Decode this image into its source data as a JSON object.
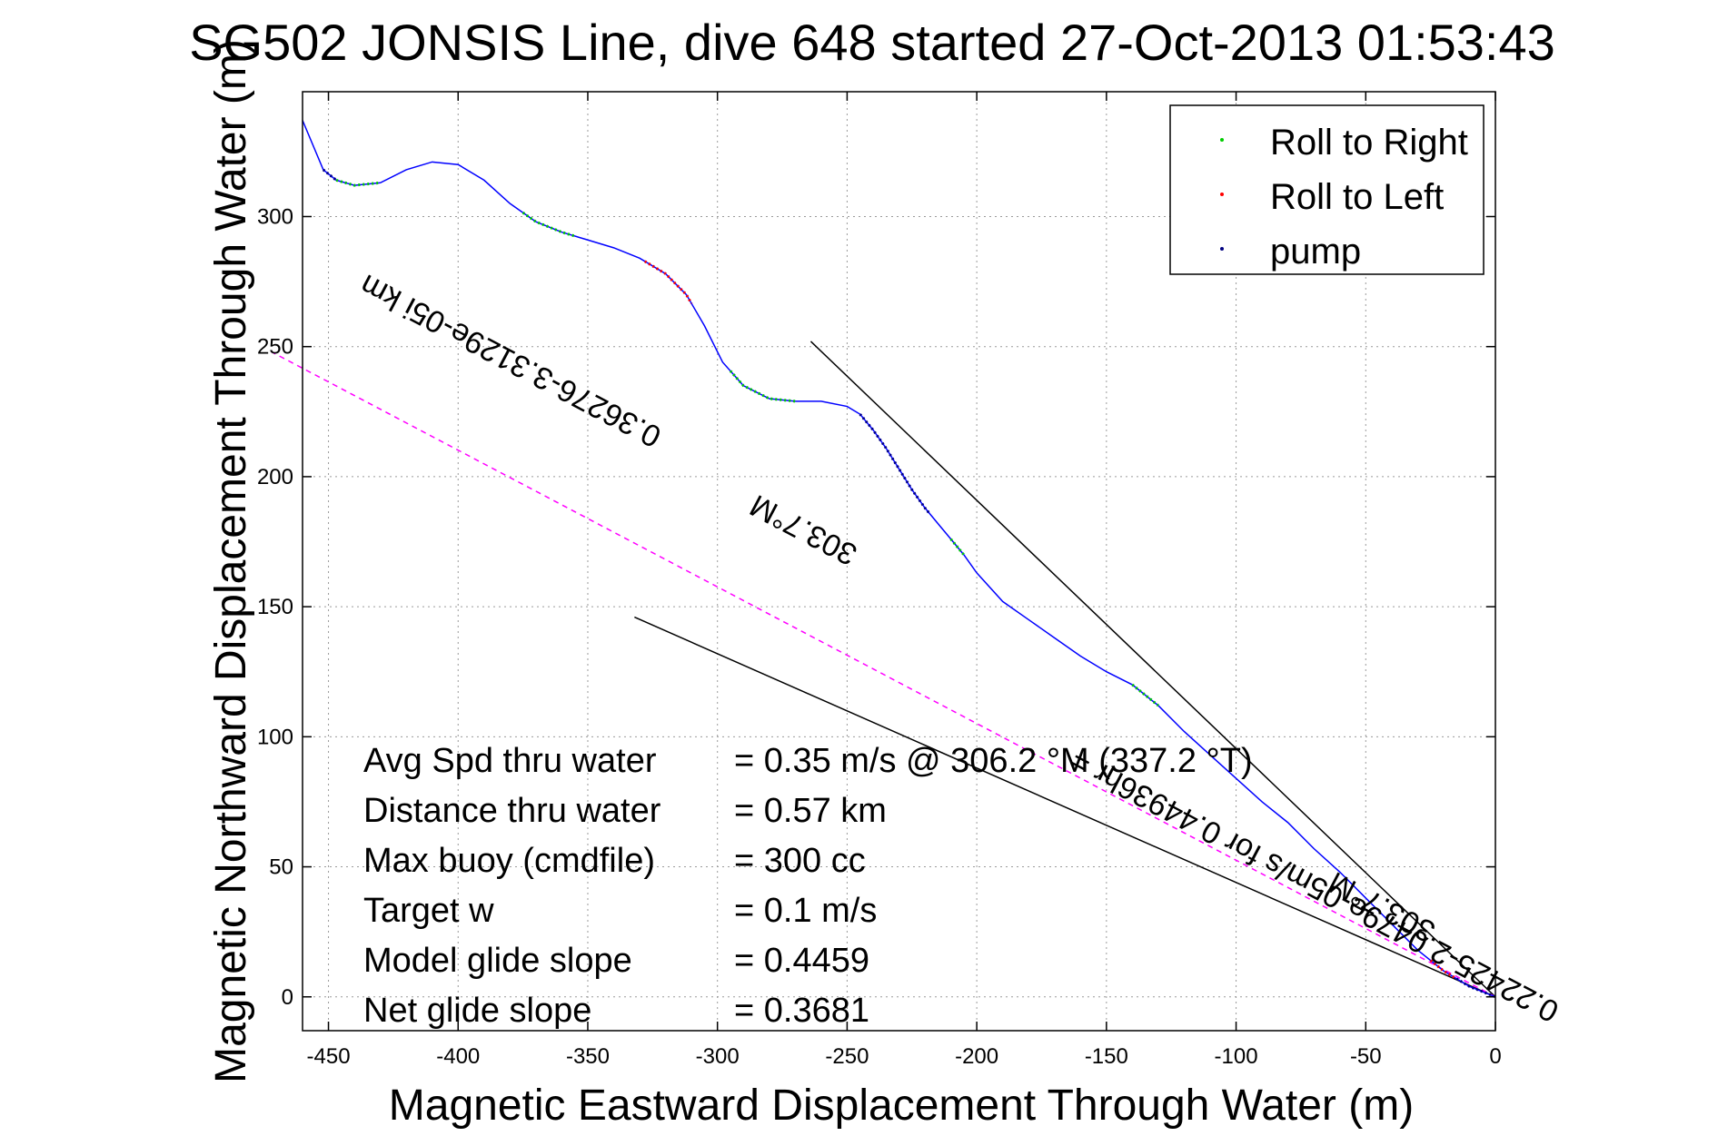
{
  "chart_data": {
    "type": "line",
    "title": "SG502 JONSIS Line, dive 648 started 27-Oct-2013 01:53:43",
    "xlabel": "Magnetic Eastward Displacement Through Water (m)",
    "ylabel": "Magnetic Northward Displacement Through Water (m)",
    "xlim": [
      -460,
      0
    ],
    "ylim": [
      -13,
      348
    ],
    "xticks": [
      -450,
      -400,
      -350,
      -300,
      -250,
      -200,
      -150,
      -100,
      -50,
      0
    ],
    "yticks": [
      0,
      50,
      100,
      150,
      200,
      250,
      300
    ],
    "grid": true,
    "legend_position": "top-right",
    "legend": [
      {
        "label": "Roll to Right",
        "color": "#00cc00"
      },
      {
        "label": "Roll to Left",
        "color": "#ff0000"
      },
      {
        "label": "pump",
        "color": "#000080"
      }
    ],
    "track": {
      "color": "#0000ff",
      "x": [
        -460,
        -452,
        -447,
        -440,
        -430,
        -420,
        -410,
        -400,
        -390,
        -380,
        -370,
        -360,
        -350,
        -340,
        -330,
        -320,
        -312,
        -305,
        -298,
        -290,
        -280,
        -270,
        -260,
        -250,
        -245,
        -240,
        -235,
        -230,
        -225,
        -220,
        -215,
        -210,
        -205,
        -200,
        -190,
        -180,
        -170,
        -160,
        -150,
        -140,
        -130,
        -120,
        -110,
        -100,
        -90,
        -80,
        -70,
        -60,
        -50,
        -40,
        -30,
        -20,
        -10,
        0
      ],
      "y": [
        337,
        318,
        314,
        312,
        313,
        318,
        321,
        320,
        314,
        305,
        298,
        294,
        291,
        288,
        284,
        278,
        270,
        258,
        244,
        235,
        230,
        229,
        229,
        227,
        224,
        218,
        211,
        203,
        195,
        188,
        182,
        176,
        170,
        163,
        152,
        145,
        138,
        131,
        125,
        120,
        112,
        102,
        93,
        84,
        75,
        67,
        57,
        48,
        38,
        28,
        18,
        10,
        4,
        0
      ]
    },
    "segments": [
      {
        "series": "pump",
        "x0": -452,
        "x1": -447
      },
      {
        "series": "Roll to Right",
        "x0": -447,
        "x1": -430
      },
      {
        "series": "Roll to Right",
        "x0": -375,
        "x1": -355
      },
      {
        "series": "Roll to Left",
        "x0": -328,
        "x1": -310
      },
      {
        "series": "Roll to Right",
        "x0": -295,
        "x1": -270
      },
      {
        "series": "pump",
        "x0": -245,
        "x1": -218
      },
      {
        "series": "Roll to Right",
        "x0": -210,
        "x1": -205
      },
      {
        "series": "Roll to Right",
        "x0": -140,
        "x1": -130
      },
      {
        "series": "Roll to Left",
        "x0": -25,
        "x1": -15
      },
      {
        "series": "pump",
        "x0": -15,
        "x1": 0
      }
    ],
    "reference_lines": [
      {
        "color": "#000000",
        "x": [
          0,
          -264
        ],
        "y": [
          0,
          252
        ]
      },
      {
        "color": "#000000",
        "x": [
          0,
          -332
        ],
        "y": [
          0,
          146
        ]
      },
      {
        "color": "#ff00ff",
        "x": [
          0,
          -472
        ],
        "y": [
          0,
          248
        ],
        "dashed": true
      }
    ],
    "rotated_labels": [
      {
        "text": "0.36276-3.3129e-05i km",
        "at": [
          -378,
          248
        ]
      },
      {
        "text": "303.7°M",
        "at": [
          -265,
          183
        ]
      },
      {
        "text": "0.22425-2.0479e-05m/s for 0.44936hr =",
        "at": [
          -68,
          46
        ]
      },
      {
        "text": "303.7°M",
        "at": [
          -42,
          38
        ]
      }
    ],
    "stats": [
      {
        "label": "Avg Spd thru water",
        "value": "=  0.35 m/s @ 306.2  °M (337.2  °T)"
      },
      {
        "label": "Distance thru water",
        "value": "=  0.57 km"
      },
      {
        "label": "Max buoy (cmdfile)",
        "value": "= 300 cc"
      },
      {
        "label": "Target w",
        "value": "= 0.1 m/s"
      },
      {
        "label": "Model glide slope",
        "value": "= 0.4459"
      },
      {
        "label": "Net glide slope",
        "value": "= 0.3681"
      }
    ]
  }
}
